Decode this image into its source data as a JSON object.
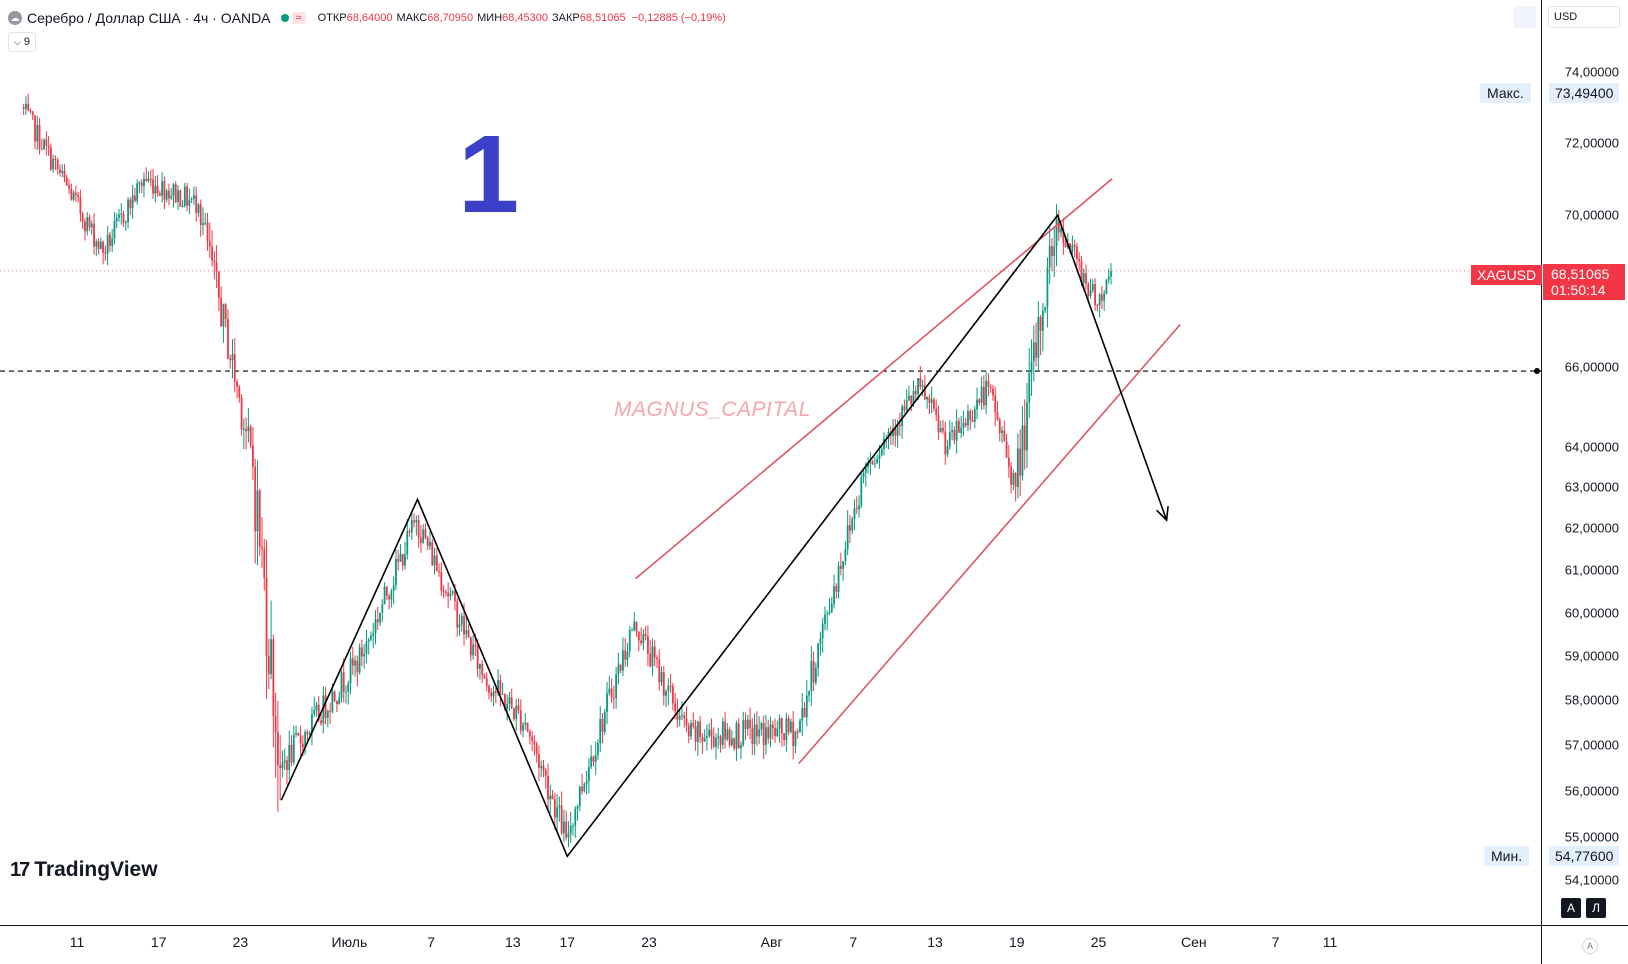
{
  "header": {
    "symbol_icon": "cloud-icon",
    "title": "Серебро / Доллар США · 4ч · OANDA",
    "wave_badge": "≈",
    "open_label": "ОТКР",
    "open": "68,64000",
    "high_label": "МАКС",
    "high": "68,70950",
    "low_label": "МИН",
    "low": "68,45300",
    "close_label": "ЗАКР",
    "close": "68,51065",
    "change": "−0,12885 (−0,19%)"
  },
  "indicator_toggle": {
    "icon": "chevron-down-icon",
    "count": "9"
  },
  "annotation_label": "1",
  "watermark": "MAGNUS_CAPITAL",
  "logo": {
    "mark": "17",
    "text": "TradingView"
  },
  "price_axis": {
    "currency": "USD",
    "labels": [
      "74,00000",
      "72,00000",
      "70,00000",
      "66,00000",
      "64,00000",
      "63,00000",
      "62,00000",
      "61,00000",
      "60,00000",
      "59,00000",
      "58,00000",
      "57,00000",
      "56,00000",
      "55,00000",
      "54,10000"
    ],
    "max_tag": "Макс.",
    "max_value": "73,49400",
    "min_tag": "Мин.",
    "min_value": "54,77600",
    "symbol_tag": "XAGUSD",
    "current_price": "68,51065",
    "countdown": "01:50:14",
    "btn_a": "A",
    "btn_l": "Л"
  },
  "time_axis": {
    "labels": [
      "11",
      "17",
      "23",
      "Июль",
      "7",
      "13",
      "17",
      "23",
      "Авг",
      "7",
      "13",
      "19",
      "25",
      "Сен",
      "7",
      "11"
    ],
    "corner_icon": "A"
  },
  "colors": {
    "up": "#089981",
    "down": "#f23645",
    "channel": "#e05563",
    "wave": "#000000",
    "label": "#3c3fc8"
  },
  "chart_data": {
    "type": "candlestick",
    "symbol": "XAGUSD",
    "timeframe": "4h",
    "ylim": [
      53.8,
      75.2
    ],
    "y_scale": "log",
    "horizontal_line": 65.9,
    "swing_points": [
      {
        "date": "Jun 26",
        "price": 55.8
      },
      {
        "date": "Jul 6",
        "price": 62.7
      },
      {
        "date": "Jul 17",
        "price": 54.6
      },
      {
        "date": "Aug 22",
        "price": 70.0
      },
      {
        "date": "Aug 30",
        "price": 62.2
      }
    ],
    "channel_upper": [
      {
        "date": "Jul 22",
        "price": 60.8
      },
      {
        "date": "Aug 26",
        "price": 71.0
      }
    ],
    "channel_lower": [
      {
        "date": "Aug 3",
        "price": 56.6
      },
      {
        "date": "Aug 31",
        "price": 67.1
      }
    ],
    "segments": [
      {
        "from": "Jun 7",
        "to": "Jun 13",
        "start": 73.0,
        "end": 69.0
      },
      {
        "from": "Jun 13",
        "to": "Jun 16",
        "start": 69.0,
        "end": 71.0
      },
      {
        "from": "Jun 16",
        "to": "Jun 20",
        "start": 71.0,
        "end": 70.3
      },
      {
        "from": "Jun 20",
        "to": "Jun 24",
        "start": 70.3,
        "end": 63.5
      },
      {
        "from": "Jun 24",
        "to": "Jun 26",
        "start": 63.5,
        "end": 56.5
      },
      {
        "from": "Jun 26",
        "to": "Jul 2",
        "start": 56.5,
        "end": 59.0
      },
      {
        "from": "Jul 2",
        "to": "Jul 6",
        "start": 59.0,
        "end": 62.2
      },
      {
        "from": "Jul 6",
        "to": "Jul 11",
        "start": 62.2,
        "end": 58.5
      },
      {
        "from": "Jul 11",
        "to": "Jul 14",
        "start": 58.5,
        "end": 57.5
      },
      {
        "from": "Jul 14",
        "to": "Jul 17",
        "start": 57.5,
        "end": 55.0
      },
      {
        "from": "Jul 17",
        "to": "Jul 22",
        "start": 55.0,
        "end": 59.8
      },
      {
        "from": "Jul 22",
        "to": "Jul 26",
        "start": 59.8,
        "end": 57.2
      },
      {
        "from": "Jul 26",
        "to": "Aug 3",
        "start": 57.2,
        "end": 57.3
      },
      {
        "from": "Aug 3",
        "to": "Aug 8",
        "start": 57.3,
        "end": 63.5
      },
      {
        "from": "Aug 8",
        "to": "Aug 12",
        "start": 63.5,
        "end": 65.5
      },
      {
        "from": "Aug 12",
        "to": "Aug 14",
        "start": 65.5,
        "end": 64.0
      },
      {
        "from": "Aug 14",
        "to": "Aug 17",
        "start": 64.0,
        "end": 65.5
      },
      {
        "from": "Aug 17",
        "to": "Aug 19",
        "start": 65.5,
        "end": 63.0
      },
      {
        "from": "Aug 19",
        "to": "Aug 22",
        "start": 63.0,
        "end": 69.9
      },
      {
        "from": "Aug 22",
        "to": "Aug 25",
        "start": 69.9,
        "end": 67.6
      },
      {
        "from": "Aug 25",
        "to": "Aug 26",
        "start": 67.6,
        "end": 68.5
      }
    ]
  }
}
